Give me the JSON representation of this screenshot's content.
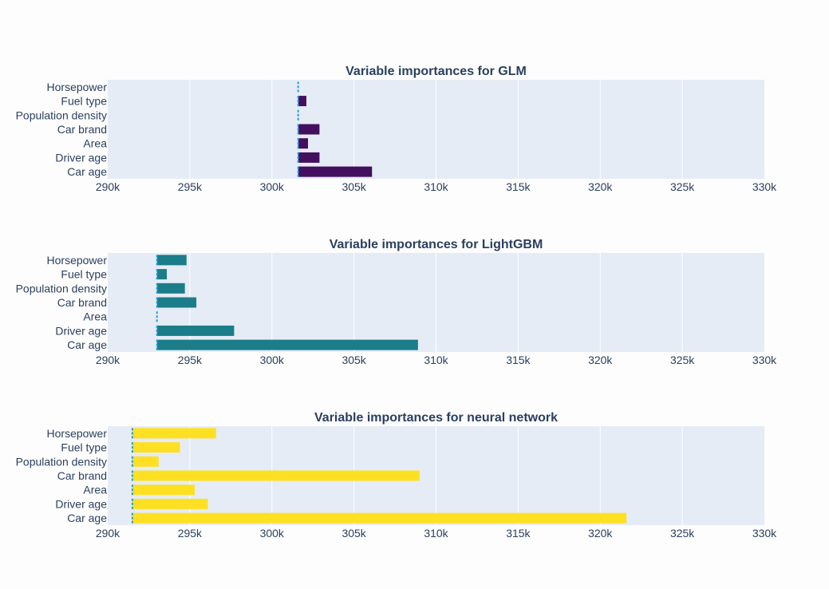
{
  "chart_data": [
    {
      "type": "bar",
      "orientation": "horizontal",
      "title": "Variable importances for GLM",
      "color": "#440f5f",
      "baseline": 301600,
      "categories": [
        "Horsepower",
        "Fuel type",
        "Population density",
        "Car brand",
        "Area",
        "Driver age",
        "Car age"
      ],
      "values": [
        301600,
        302100,
        301600,
        302900,
        302200,
        302900,
        306100
      ],
      "xlim": [
        290000,
        330000
      ],
      "xticks": [
        "290k",
        "295k",
        "300k",
        "305k",
        "310k",
        "315k",
        "320k",
        "325k",
        "330k"
      ],
      "grid": true
    },
    {
      "type": "bar",
      "orientation": "horizontal",
      "title": "Variable importances for LightGBM",
      "color": "#1b7d89",
      "baseline": 293000,
      "categories": [
        "Horsepower",
        "Fuel type",
        "Population density",
        "Car brand",
        "Area",
        "Driver age",
        "Car age"
      ],
      "values": [
        294800,
        293600,
        294700,
        295400,
        293000,
        297700,
        308900
      ],
      "xlim": [
        290000,
        330000
      ],
      "xticks": [
        "290k",
        "295k",
        "300k",
        "305k",
        "310k",
        "315k",
        "320k",
        "325k",
        "330k"
      ],
      "grid": true
    },
    {
      "type": "bar",
      "orientation": "horizontal",
      "title": "Variable importances for neural network",
      "color": "#fde022",
      "baseline": 291500,
      "categories": [
        "Horsepower",
        "Fuel type",
        "Population density",
        "Car brand",
        "Area",
        "Driver age",
        "Car age"
      ],
      "values": [
        296600,
        294400,
        293100,
        309000,
        295300,
        296100,
        321600
      ],
      "xlim": [
        290000,
        330000
      ],
      "xticks": [
        "290k",
        "295k",
        "300k",
        "305k",
        "310k",
        "315k",
        "320k",
        "325k",
        "330k"
      ],
      "grid": true
    }
  ],
  "colors": {
    "plot_background": "#e5ecf6",
    "gridline": "#ffffff",
    "text": "#2a3f5f",
    "baseline_marker": "#1f9ee0"
  }
}
